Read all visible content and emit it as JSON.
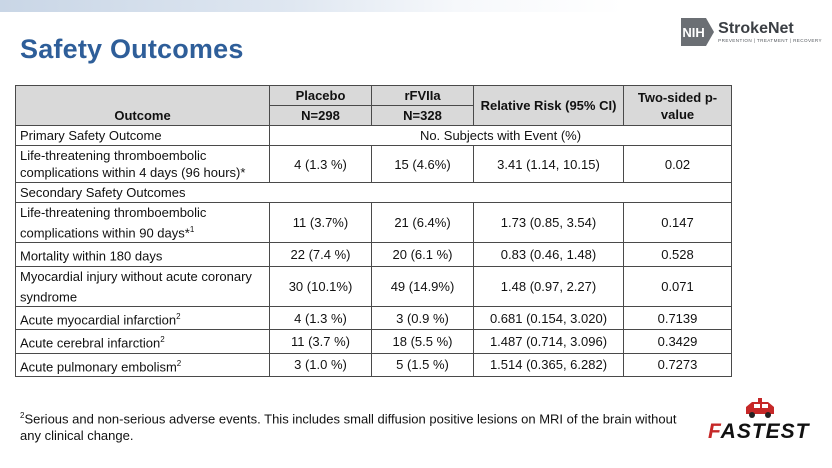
{
  "slide": {
    "title": "Safety Outcomes"
  },
  "logo": {
    "nih_label": "NIH",
    "name": "StrokeNet",
    "tagline": "PREVENTION | TREATMENT | RECOVERY"
  },
  "table": {
    "headers": {
      "outcome": "Outcome",
      "placebo": "Placebo",
      "placebo_n": "N=298",
      "rfviia": "rFVIIa",
      "rfviia_n": "N=328",
      "rr": "Relative Risk (95% CI)",
      "p": "Two-sided p-value"
    },
    "primary_label": "Primary Safety Outcome",
    "events_label": "No. Subjects with Event (%)",
    "secondary_label": "Secondary Safety Outcomes",
    "primary_row": {
      "outcome": "Life-threatening thromboembolic complications within 4 days (96 hours)*",
      "placebo": "4 (1.3 %)",
      "rfviia": "15 (4.6%)",
      "rr": "3.41 (1.14, 10.15)",
      "p": "0.02"
    },
    "secondary_rows": [
      {
        "outcome": "Life-threatening thromboembolic complications within 90 days*",
        "sup": "1",
        "placebo": "11 (3.7%)",
        "rfviia": "21 (6.4%)",
        "rr": "1.73 (0.85, 3.54)",
        "p": "0.147"
      },
      {
        "outcome": "Mortality within 180 days",
        "sup": "",
        "placebo": "22 (7.4 %)",
        "rfviia": "20 (6.1 %)",
        "rr": "0.83 (0.46, 1.48)",
        "p": "0.528"
      },
      {
        "outcome": "Myocardial injury without acute coronary syndrome",
        "sup": "",
        "placebo": "30 (10.1%)",
        "rfviia": "49 (14.9%)",
        "rr": "1.48 (0.97, 2.27)",
        "p": "0.071"
      },
      {
        "outcome": "Acute myocardial infarction",
        "sup": "2",
        "placebo": "4 (1.3 %)",
        "rfviia": "3 (0.9 %)",
        "rr": "0.681 (0.154, 3.020)",
        "p": "0.7139"
      },
      {
        "outcome": "Acute cerebral infarction",
        "sup": "2",
        "placebo": "11 (3.7 %)",
        "rfviia": "18 (5.5 %)",
        "rr": "1.487 (0.714, 3.096)",
        "p": "0.3429"
      },
      {
        "outcome": "Acute pulmonary embolism",
        "sup": "2",
        "placebo": "3 (1.0 %)",
        "rfviia": "5 (1.5 %)",
        "rr": "1.514 (0.365, 6.282)",
        "p": "0.7273"
      }
    ]
  },
  "footnote": {
    "marker": "2",
    "text": "Serious and non-serious adverse events. This includes small diffusion positive lesions on MRI of the brain without any clinical change."
  },
  "fastest_logo": {
    "first_letter": "F",
    "rest": "ASTEST"
  }
}
